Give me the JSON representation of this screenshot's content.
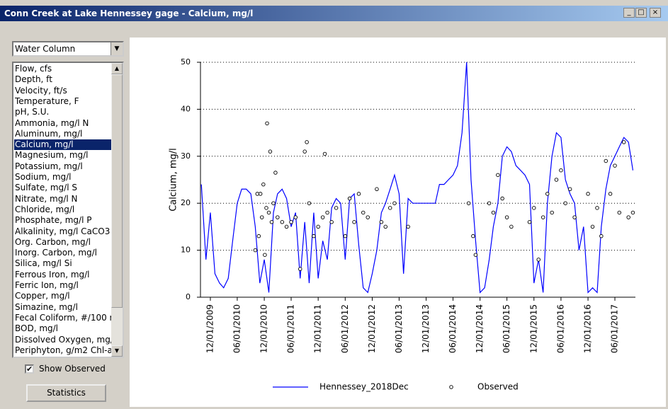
{
  "window_title": "Conn Creek at Lake Hennessey gage - Calcium, mg/l",
  "dropdown": "Water Column",
  "list_items": [
    "Flow, cfs",
    "Depth, ft",
    "Velocity, ft/s",
    "Temperature, F",
    "pH, S.U.",
    "Ammonia, mg/l N",
    "Aluminum, mg/l",
    "Calcium, mg/l",
    "Magnesium, mg/l",
    "Potassium, mg/l",
    "Sodium, mg/l",
    "Sulfate, mg/l S",
    "Nitrate, mg/l N",
    "Chloride, mg/l",
    "Phosphate, mg/l P",
    "Alkalinity, mg/l CaCO3",
    "Org. Carbon, mg/l",
    "Inorg. Carbon, mg/l",
    "Silica, mg/l Si",
    "Ferrous Iron, mg/l",
    "Ferric Ion, mg/l",
    "Copper, mg/l",
    "Simazine, mg/l",
    "Fecal Coliform, #/100 m",
    "BOD, mg/l",
    "Dissolved Oxygen, mg/l",
    "Periphyton, g/m2 Chl-a"
  ],
  "selected_index": 7,
  "checkbox": {
    "label": "Show Observed",
    "checked": true
  },
  "button": "Statistics",
  "chart_data": {
    "type": "line",
    "y_label": "Calcium, mg/l",
    "ylim": [
      0,
      50
    ],
    "yticks": [
      0,
      10,
      20,
      30,
      40,
      50
    ],
    "xlim": [
      "2009-09-25",
      "2017-10-18"
    ],
    "xticks": [
      {
        "value": "2009-12-01",
        "label": "12/01/2009"
      },
      {
        "value": "2010-06-01",
        "label": "06/01/2010"
      },
      {
        "value": "2010-12-01",
        "label": "12/01/2010"
      },
      {
        "value": "2011-06-01",
        "label": "06/01/2011"
      },
      {
        "value": "2011-12-01",
        "label": "12/01/2011"
      },
      {
        "value": "2012-06-01",
        "label": "06/01/2012"
      },
      {
        "value": "2012-12-01",
        "label": "12/01/2012"
      },
      {
        "value": "2013-06-01",
        "label": "06/01/2013"
      },
      {
        "value": "2013-12-01",
        "label": "12/01/2013"
      },
      {
        "value": "2014-06-01",
        "label": "06/01/2014"
      },
      {
        "value": "2014-12-01",
        "label": "12/01/2014"
      },
      {
        "value": "2015-06-01",
        "label": "06/01/2015"
      },
      {
        "value": "2015-12-01",
        "label": "12/01/2015"
      },
      {
        "value": "2016-06-01",
        "label": "06/01/2016"
      },
      {
        "value": "2016-12-01",
        "label": "12/01/2016"
      },
      {
        "value": "2017-06-01",
        "label": "06/01/2017"
      }
    ],
    "grid": "y",
    "series": [
      {
        "name": "Hennessey_2018Dec",
        "color": "#0000ff",
        "type": "line",
        "x": [
          "2009-10-01",
          "2009-11-01",
          "2009-12-01",
          "2010-01-01",
          "2010-02-01",
          "2010-03-01",
          "2010-04-01",
          "2010-05-01",
          "2010-06-01",
          "2010-07-01",
          "2010-08-01",
          "2010-09-01",
          "2010-10-01",
          "2010-11-01",
          "2010-12-01",
          "2011-01-01",
          "2011-02-01",
          "2011-03-01",
          "2011-04-01",
          "2011-05-01",
          "2011-06-01",
          "2011-07-01",
          "2011-08-01",
          "2011-09-01",
          "2011-10-01",
          "2011-11-01",
          "2011-12-01",
          "2012-01-01",
          "2012-02-01",
          "2012-03-01",
          "2012-04-01",
          "2012-05-01",
          "2012-06-01",
          "2012-07-01",
          "2012-08-01",
          "2012-09-01",
          "2012-10-01",
          "2012-11-01",
          "2012-12-01",
          "2013-01-01",
          "2013-02-01",
          "2013-03-01",
          "2013-04-01",
          "2013-05-01",
          "2013-06-01",
          "2013-07-01",
          "2013-08-01",
          "2013-09-01",
          "2013-10-01",
          "2013-11-01",
          "2013-12-01",
          "2014-01-01",
          "2014-02-01",
          "2014-03-01",
          "2014-04-01",
          "2014-05-01",
          "2014-06-01",
          "2014-07-01",
          "2014-08-01",
          "2014-09-01",
          "2014-10-01",
          "2014-11-01",
          "2014-12-01",
          "2015-01-01",
          "2015-02-01",
          "2015-03-01",
          "2015-04-01",
          "2015-05-01",
          "2015-06-01",
          "2015-07-01",
          "2015-08-01",
          "2015-09-01",
          "2015-10-01",
          "2015-11-01",
          "2015-12-01",
          "2016-01-01",
          "2016-02-01",
          "2016-03-01",
          "2016-04-01",
          "2016-05-01",
          "2016-06-01",
          "2016-07-01",
          "2016-08-01",
          "2016-09-01",
          "2016-10-01",
          "2016-11-01",
          "2016-12-01",
          "2017-01-01",
          "2017-02-01",
          "2017-03-01",
          "2017-04-01",
          "2017-05-01",
          "2017-06-01",
          "2017-07-01",
          "2017-08-01",
          "2017-09-01",
          "2017-10-01"
        ],
        "values": [
          24,
          8,
          18,
          5,
          3,
          2,
          4,
          12,
          20,
          23,
          23,
          22,
          15,
          3,
          8,
          1,
          18,
          22,
          23,
          21,
          15,
          18,
          4,
          16,
          3,
          18,
          4,
          12,
          8,
          19,
          21,
          20,
          8,
          21,
          22,
          11,
          2,
          1,
          5,
          10,
          18,
          20,
          23,
          26,
          22,
          5,
          21,
          20,
          20,
          20,
          20,
          20,
          20,
          24,
          24,
          25,
          26,
          28,
          35,
          50,
          25,
          12,
          1,
          2,
          8,
          15,
          20,
          30,
          32,
          31,
          28,
          27,
          26,
          24,
          3,
          8,
          1,
          20,
          30,
          35,
          34,
          25,
          22,
          20,
          10,
          15,
          1,
          2,
          1,
          15,
          23,
          28,
          30,
          32,
          34,
          33,
          27
        ]
      },
      {
        "name": "Observed",
        "color": "#000000",
        "type": "scatter",
        "x": [
          "2010-10-01",
          "2010-10-15",
          "2010-10-25",
          "2010-11-05",
          "2010-11-15",
          "2010-11-25",
          "2010-12-05",
          "2010-12-15",
          "2010-12-20",
          "2011-01-01",
          "2011-01-10",
          "2011-01-20",
          "2011-02-01",
          "2011-02-15",
          "2011-03-01",
          "2011-04-01",
          "2011-05-01",
          "2011-06-01",
          "2011-07-01",
          "2011-08-01",
          "2011-09-01",
          "2011-09-15",
          "2011-10-01",
          "2011-11-01",
          "2011-12-01",
          "2012-01-01",
          "2012-01-15",
          "2012-02-01",
          "2012-03-01",
          "2012-04-01",
          "2012-06-01",
          "2012-07-01",
          "2012-08-01",
          "2012-09-01",
          "2012-10-01",
          "2012-11-01",
          "2013-01-01",
          "2013-02-01",
          "2013-03-01",
          "2013-04-01",
          "2013-05-01",
          "2013-08-01",
          "2014-09-15",
          "2014-10-15",
          "2014-11-01",
          "2015-02-01",
          "2015-03-01",
          "2015-04-01",
          "2015-05-01",
          "2015-06-01",
          "2015-07-01",
          "2015-11-01",
          "2015-12-01",
          "2016-01-01",
          "2016-02-01",
          "2016-03-01",
          "2016-04-01",
          "2016-05-01",
          "2016-06-01",
          "2016-07-01",
          "2016-08-01",
          "2016-09-01",
          "2016-12-01",
          "2017-01-01",
          "2017-02-01",
          "2017-03-01",
          "2017-04-01",
          "2017-05-01",
          "2017-06-01",
          "2017-07-01",
          "2017-08-01",
          "2017-09-01",
          "2017-10-01"
        ],
        "values": [
          10,
          22,
          13,
          22,
          17,
          24,
          9,
          19,
          37,
          18,
          31,
          16,
          20,
          26.5,
          17,
          16,
          15,
          16,
          17,
          6,
          31,
          33,
          20,
          13,
          15,
          17,
          30.5,
          18,
          16,
          19,
          13,
          21,
          16,
          22,
          18,
          17,
          23,
          16,
          15,
          19,
          20,
          15,
          20,
          13,
          9,
          20,
          18,
          26,
          21,
          17,
          15,
          16,
          19,
          8,
          17,
          22,
          18,
          25,
          27,
          20,
          23,
          17,
          22,
          15,
          19,
          13,
          29,
          22,
          28,
          18,
          33,
          17,
          18
        ]
      }
    ]
  }
}
